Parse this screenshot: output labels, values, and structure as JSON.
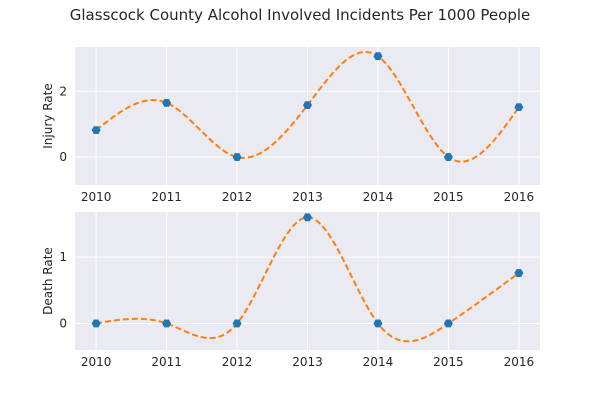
{
  "figure_title": "Glasscock County Alcohol Involved Incidents Per 1000 People",
  "colors": {
    "marker": "#1f77b4",
    "curve": "#ff7f0e",
    "background": "#eaeaf2"
  },
  "chart_data": [
    {
      "type": "scatter",
      "ylabel": "Injury Rate",
      "x": [
        2010,
        2011,
        2012,
        2013,
        2014,
        2015,
        2016
      ],
      "y": [
        0.82,
        1.65,
        0.0,
        1.58,
        3.07,
        0.0,
        1.52
      ],
      "curve": "smooth interpolating spline (dashed)",
      "xlim": [
        2009.7,
        2016.3
      ],
      "ylim": [
        -0.85,
        3.35
      ],
      "xticks": [
        "2010",
        "2011",
        "2012",
        "2013",
        "2014",
        "2015",
        "2016"
      ],
      "yticks": [
        "0",
        "2"
      ],
      "grid": true
    },
    {
      "type": "scatter",
      "ylabel": "Death Rate",
      "x": [
        2010,
        2011,
        2012,
        2013,
        2014,
        2015,
        2016
      ],
      "y": [
        0.0,
        0.0,
        0.0,
        1.6,
        0.0,
        0.0,
        0.76
      ],
      "curve": "smooth interpolating spline (dashed)",
      "xlim": [
        2009.7,
        2016.3
      ],
      "ylim": [
        -0.4,
        1.68
      ],
      "xticks": [
        "2010",
        "2011",
        "2012",
        "2013",
        "2014",
        "2015",
        "2016"
      ],
      "yticks": [
        "0",
        "1"
      ],
      "grid": true
    }
  ]
}
